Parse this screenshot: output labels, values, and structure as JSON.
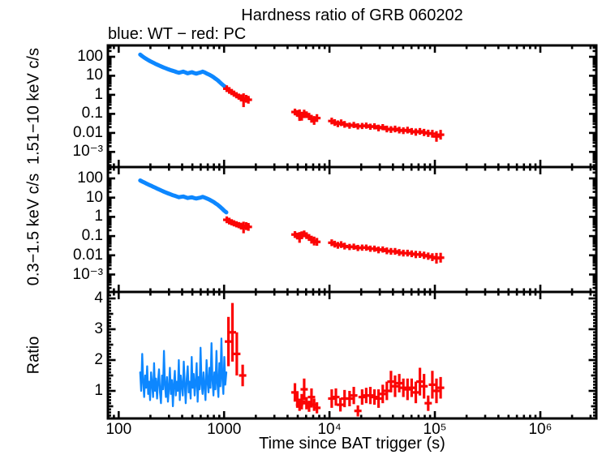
{
  "chart_data": {
    "type": "line",
    "title": "Hardness ratio of GRB 060202",
    "subtitle": "blue: WT − red: PC",
    "xlabel": "Time since BAT trigger (s)",
    "xscale": "log",
    "xlim": [
      79,
      3400000
    ],
    "x_major_ticks": [
      {
        "v": 100,
        "label": "100"
      },
      {
        "v": 1000,
        "label": "1000"
      },
      {
        "v": 10000,
        "label": "10⁴"
      },
      {
        "v": 100000,
        "label": "10⁵"
      },
      {
        "v": 1000000,
        "label": "10⁶"
      }
    ],
    "colors": {
      "wt": "#0d87ff",
      "pc": "#fb0505"
    },
    "legend": [
      {
        "label": "WT",
        "color": "#0d87ff"
      },
      {
        "label": "PC",
        "color": "#fb0505"
      }
    ],
    "wt_t": [
      160,
      168,
      176,
      184,
      193,
      202,
      212,
      222,
      233,
      244,
      256,
      268,
      281,
      295,
      309,
      324,
      340,
      356,
      373,
      391,
      410,
      430,
      450,
      472,
      495,
      519,
      544,
      570,
      597,
      626,
      656,
      688,
      721,
      756,
      792,
      830,
      870,
      912,
      956,
      1002,
      1050
    ],
    "pc_t": [
      1060,
      1120,
      1180,
      1240,
      1310,
      1380,
      1450,
      1530,
      1620,
      1700,
      4700,
      4950,
      5200,
      5450,
      5750,
      6050,
      6400,
      6750,
      7150,
      7600,
      10500,
      11200,
      12000,
      12900,
      13900,
      15500,
      17000,
      18600,
      20400,
      22300,
      24400,
      26700,
      29200,
      32000,
      35000,
      38300,
      41900,
      45900,
      50200,
      55000,
      60200,
      65900,
      72100,
      78900,
      86400,
      94600,
      103500,
      113300
    ],
    "panels": [
      {
        "name": "hard-band",
        "ylabel": "1.51−10 keV c/s",
        "yscale": "log",
        "ylim": [
          0.00016,
          394
        ],
        "yticks": [
          {
            "v": 100,
            "label": "100"
          },
          {
            "v": 10,
            "label": "10"
          },
          {
            "v": 1,
            "label": "1"
          },
          {
            "v": 0.1,
            "label": "0.1"
          },
          {
            "v": 0.01,
            "label": "0.01"
          },
          {
            "v": 0.001,
            "label": "10⁻³"
          }
        ],
        "series": [
          {
            "name": "WT",
            "type": "line",
            "color": "wt",
            "t": "wt_t",
            "v": [
              130,
              105,
              88,
              75,
              64,
              56,
              49,
              43,
              38,
              34,
              30,
              27,
              24.5,
              22,
              20,
              18.5,
              17,
              15.5,
              14.5,
              15.5,
              16.5,
              15,
              13.5,
              14.5,
              15.5,
              14,
              13,
              14,
              15,
              16.5,
              15,
              13,
              11.5,
              10,
              8.5,
              7,
              5.8,
              4.6,
              3.6,
              2.9,
              2.4
            ]
          },
          {
            "name": "PC",
            "type": "points",
            "color": "pc",
            "t": "pc_t",
            "v": [
              2.1,
              1.7,
              1.4,
              1.15,
              0.95,
              0.8,
              0.7,
              0.52,
              0.62,
              0.55,
              0.125,
              0.105,
              0.085,
              0.07,
              0.11,
              0.09,
              0.075,
              0.055,
              0.045,
              0.06,
              0.042,
              0.035,
              0.03,
              0.034,
              0.028,
              0.024,
              0.026,
              0.022,
              0.023,
              0.024,
              0.021,
              0.022,
              0.018,
              0.02,
              0.016,
              0.015,
              0.016,
              0.014,
              0.013,
              0.014,
              0.012,
              0.011,
              0.012,
              0.0105,
              0.0095,
              0.009,
              0.0065,
              0.008
            ],
            "e": [
              0.5,
              0.5,
              0.45,
              0.45,
              0.45,
              0.45,
              0.5,
              1.3,
              0.6,
              0.6,
              0.5,
              0.5,
              1.0,
              0.6,
              0.5,
              0.5,
              0.5,
              0.6,
              0.7,
              0.6,
              0.5,
              0.5,
              0.5,
              0.5,
              0.5,
              0.45,
              0.45,
              0.45,
              0.45,
              0.45,
              0.45,
              0.45,
              0.5,
              0.45,
              0.5,
              0.5,
              0.5,
              0.5,
              0.5,
              0.5,
              0.5,
              0.55,
              0.5,
              0.55,
              0.55,
              0.6,
              0.9,
              0.8
            ]
          }
        ]
      },
      {
        "name": "soft-band",
        "ylabel": "0.3−1.5 keV c/s",
        "yscale": "log",
        "ylim": [
          0.000124,
          389
        ],
        "yticks": [
          {
            "v": 100,
            "label": "100"
          },
          {
            "v": 10,
            "label": "10"
          },
          {
            "v": 1,
            "label": "1"
          },
          {
            "v": 0.1,
            "label": "0.1"
          },
          {
            "v": 0.01,
            "label": "0.01"
          },
          {
            "v": 0.001,
            "label": "10⁻³"
          }
        ],
        "series": [
          {
            "name": "WT",
            "type": "line",
            "color": "wt",
            "t": "wt_t",
            "v": [
              78,
              68,
              60,
              53,
              47,
              42,
              37,
              33,
              29,
              26,
              23,
              20.5,
              18.5,
              16.5,
              15,
              13.5,
              12.5,
              11.5,
              10.5,
              11,
              11.5,
              10.5,
              9.5,
              10,
              10.5,
              9.5,
              9,
              9.5,
              10,
              11,
              10,
              9,
              8,
              7,
              6,
              5,
              4.2,
              3.4,
              2.7,
              2.1,
              1.7
            ]
          },
          {
            "name": "PC",
            "type": "points",
            "color": "pc",
            "t": "pc_t",
            "v": [
              0.7,
              0.6,
              0.52,
              0.46,
              0.41,
              0.37,
              0.33,
              0.28,
              0.33,
              0.3,
              0.12,
              0.1,
              0.085,
              0.11,
              0.13,
              0.105,
              0.085,
              0.065,
              0.055,
              0.05,
              0.045,
              0.038,
              0.033,
              0.036,
              0.03,
              0.027,
              0.028,
              0.024,
              0.025,
              0.025,
              0.022,
              0.022,
              0.019,
              0.02,
              0.017,
              0.016,
              0.016,
              0.014,
              0.013,
              0.013,
              0.012,
              0.011,
              0.011,
              0.01,
              0.009,
              0.008,
              0.007,
              0.0075
            ],
            "e": [
              0.5,
              0.5,
              0.45,
              0.45,
              0.45,
              0.45,
              0.5,
              1.0,
              0.6,
              0.6,
              0.5,
              0.5,
              0.9,
              0.6,
              0.5,
              0.5,
              0.5,
              0.6,
              0.7,
              0.6,
              0.5,
              0.5,
              0.5,
              0.5,
              0.5,
              0.45,
              0.45,
              0.45,
              0.45,
              0.45,
              0.45,
              0.45,
              0.5,
              0.45,
              0.5,
              0.5,
              0.5,
              0.5,
              0.5,
              0.5,
              0.5,
              0.55,
              0.5,
              0.55,
              0.55,
              0.6,
              0.9,
              0.8
            ]
          }
        ]
      },
      {
        "name": "ratio",
        "ylabel": "Ratio",
        "yscale": "linear",
        "ylim": [
          0.105,
          4.21
        ],
        "yticks": [
          {
            "v": 4,
            "label": "4"
          },
          {
            "v": 3,
            "label": "3"
          },
          {
            "v": 2,
            "label": "2"
          },
          {
            "v": 1,
            "label": "1"
          }
        ],
        "series": [
          {
            "name": "WT",
            "type": "noisy-line",
            "color": "wt",
            "t_start": 160,
            "t_end": 1050,
            "v": [
              1.6,
              1.0,
              2.2,
              1.3,
              0.8,
              1.5,
              1.1,
              1.8,
              0.9,
              1.3,
              0.7,
              1.6,
              1.2,
              0.8,
              1.9,
              1.0,
              1.4,
              0.75,
              1.3,
              1.7,
              0.95,
              0.6,
              1.5,
              1.05,
              2.3,
              1.2,
              0.8,
              1.45,
              0.65,
              1.1,
              1.75,
              0.9,
              1.35,
              0.5,
              1.2,
              1.65,
              0.85,
              1.3,
              1.0,
              2.0,
              0.7,
              1.5,
              1.15,
              0.85,
              1.95,
              1.25,
              0.6,
              1.4,
              1.8,
              0.95,
              1.3,
              0.75,
              2.1,
              1.1,
              1.55,
              0.85,
              1.25,
              1.9,
              0.65,
              1.45,
              1.05,
              2.4,
              1.2,
              0.9,
              1.6,
              1.15,
              0.7,
              2.0,
              1.3,
              0.95,
              1.75,
              1.1,
              2.55,
              1.35,
              0.85,
              1.6,
              1.05,
              2.3,
              1.25,
              0.8,
              1.9,
              1.15,
              2.7,
              1.4,
              0.9,
              2.1,
              1.2,
              1.6
            ]
          },
          {
            "name": "PC",
            "type": "points",
            "color": "pc",
            "t": [
              1100,
              1200,
              1320,
              1500,
              4700,
              4950,
              5200,
              5450,
              5750,
              6050,
              6400,
              6750,
              7150,
              7600,
              10500,
              11500,
              12700,
              13900,
              15500,
              17000,
              18600,
              20400,
              22300,
              24400,
              26700,
              29200,
              32000,
              35000,
              38300,
              41900,
              45900,
              50200,
              55000,
              60200,
              65900,
              72100,
              78900,
              86400,
              94600,
              103500,
              113300
            ],
            "v": [
              2.6,
              2.9,
              2.2,
              1.5,
              0.95,
              0.7,
              0.55,
              0.65,
              1.05,
              0.6,
              0.5,
              0.8,
              0.55,
              0.45,
              0.75,
              0.8,
              0.55,
              0.75,
              0.75,
              0.85,
              0.35,
              0.8,
              0.85,
              0.85,
              0.8,
              0.75,
              0.9,
              1.0,
              1.3,
              1.15,
              1.25,
              1.1,
              1.05,
              1.1,
              0.95,
              1.3,
              1.15,
              0.6,
              1.2,
              1.0,
              1.1
            ],
            "e": [
              0.8,
              0.95,
              0.7,
              0.35,
              0.3,
              0.25,
              0.2,
              0.25,
              0.35,
              0.2,
              0.18,
              0.28,
              0.2,
              0.18,
              0.3,
              0.28,
              0.22,
              0.28,
              0.25,
              0.28,
              0.18,
              0.25,
              0.25,
              0.28,
              0.25,
              0.3,
              0.3,
              0.3,
              0.35,
              0.35,
              0.3,
              0.3,
              0.35,
              0.3,
              0.35,
              0.45,
              0.4,
              0.25,
              0.45,
              0.4,
              0.35
            ]
          }
        ]
      }
    ]
  }
}
